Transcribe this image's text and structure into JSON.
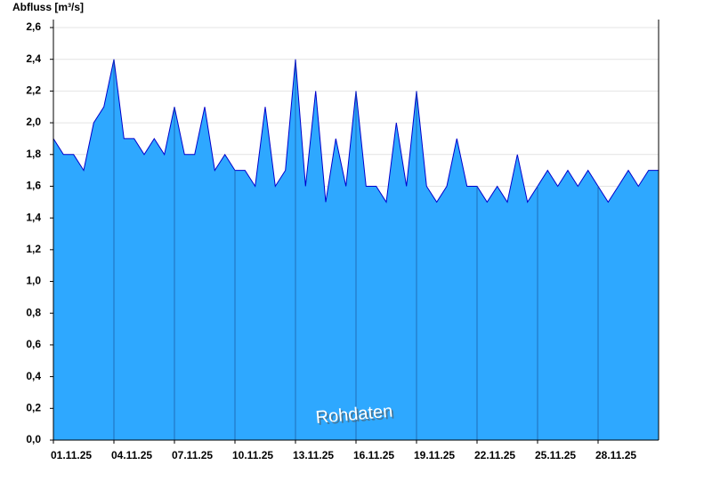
{
  "chart_data": {
    "type": "area",
    "title": "Abfluss [m³/s]",
    "annotation": "Rohdaten",
    "x": [
      0,
      0.5,
      1,
      1.5,
      2,
      2.5,
      3,
      3.5,
      4,
      4.5,
      5,
      5.5,
      6,
      6.5,
      7,
      7.5,
      8,
      8.5,
      9,
      9.5,
      10,
      10.5,
      11,
      11.5,
      12,
      12.5,
      13,
      13.5,
      14,
      14.5,
      15,
      15.5,
      16,
      16.5,
      17,
      17.5,
      18,
      18.5,
      19,
      19.5,
      20,
      20.5,
      21,
      21.5,
      22,
      22.5,
      23,
      23.5,
      24,
      24.5,
      25,
      25.5,
      26,
      26.5,
      27,
      27.5,
      28,
      28.5,
      29,
      29.5,
      30
    ],
    "values": [
      1.9,
      1.8,
      1.8,
      1.7,
      2.0,
      2.1,
      2.4,
      1.9,
      1.9,
      1.8,
      1.9,
      1.8,
      2.1,
      1.8,
      1.8,
      2.1,
      1.7,
      1.8,
      1.7,
      1.7,
      1.6,
      2.1,
      1.6,
      1.7,
      2.4,
      1.6,
      2.2,
      1.5,
      1.9,
      1.6,
      2.2,
      1.6,
      1.6,
      1.5,
      2.0,
      1.6,
      2.2,
      1.6,
      1.5,
      1.6,
      1.9,
      1.6,
      1.6,
      1.5,
      1.6,
      1.5,
      1.8,
      1.5,
      1.6,
      1.7,
      1.6,
      1.7,
      1.6,
      1.7,
      1.6,
      1.5,
      1.6,
      1.7,
      1.6,
      1.7,
      1.7
    ],
    "fill_color": "#2ea8ff",
    "line_color": "#0000cc",
    "xlim": [
      0,
      30
    ],
    "xticks": [
      {
        "value": 0,
        "label": "01.11.25"
      },
      {
        "value": 3,
        "label": "04.11.25"
      },
      {
        "value": 6,
        "label": "07.11.25"
      },
      {
        "value": 9,
        "label": "10.11.25"
      },
      {
        "value": 12,
        "label": "13.11.25"
      },
      {
        "value": 15,
        "label": "16.11.25"
      },
      {
        "value": 18,
        "label": "19.11.25"
      },
      {
        "value": 21,
        "label": "22.11.25"
      },
      {
        "value": 24,
        "label": "25.11.25"
      },
      {
        "value": 27,
        "label": "28.11.25"
      }
    ],
    "ylim": [
      0,
      2.6
    ],
    "yticks": [
      {
        "value": 0,
        "label": "0,0"
      },
      {
        "value": 0.2,
        "label": "0,2"
      },
      {
        "value": 0.4,
        "label": "0,4"
      },
      {
        "value": 0.6,
        "label": "0,6"
      },
      {
        "value": 0.8,
        "label": "0,8"
      },
      {
        "value": 1.0,
        "label": "1,0"
      },
      {
        "value": 1.2,
        "label": "1,2"
      },
      {
        "value": 1.4,
        "label": "1,4"
      },
      {
        "value": 1.6,
        "label": "1,6"
      },
      {
        "value": 1.8,
        "label": "1,8"
      },
      {
        "value": 2.0,
        "label": "2,0"
      },
      {
        "value": 2.2,
        "label": "2,2"
      },
      {
        "value": 2.4,
        "label": "2,4"
      },
      {
        "value": 2.6,
        "label": "2,6"
      }
    ],
    "grid": true
  }
}
